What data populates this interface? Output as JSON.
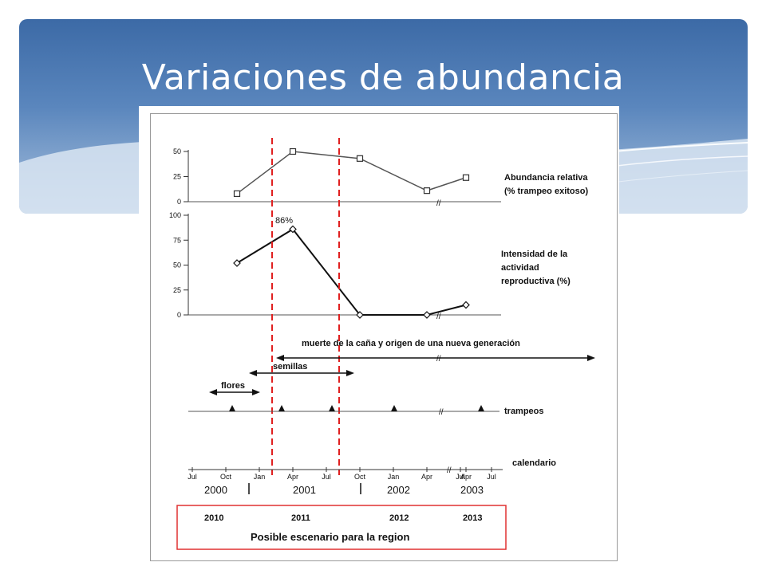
{
  "slide": {
    "title": "Variaciones de abundancia"
  },
  "colors": {
    "banner_top": "#3c6aa6",
    "banner_bottom": "#a9c1dd",
    "dashed_lines": "#e02020",
    "scenario_box": "#e03030"
  },
  "chart_data": [
    {
      "type": "line",
      "label_lines": [
        "Abundancia relativa",
        "(% trampeo exitoso)"
      ],
      "marker": "square",
      "yticks": [
        0,
        25,
        50
      ],
      "ylim": [
        0,
        50
      ],
      "x": [
        "2000-11",
        "2001-04",
        "2001-10",
        "2002-04",
        "2003-04"
      ],
      "values": [
        8,
        50,
        43,
        11,
        24
      ]
    },
    {
      "type": "line",
      "label_lines": [
        "Intensidad de la",
        "actividad",
        "reproductiva (%)"
      ],
      "marker": "diamond",
      "yticks": [
        0,
        25,
        50,
        75,
        100
      ],
      "ylim": [
        0,
        100
      ],
      "x": [
        "2000-11",
        "2001-04",
        "2001-10",
        "2002-04",
        "2003-04"
      ],
      "values": [
        52,
        86,
        0,
        0,
        10
      ],
      "annotation": "86%"
    }
  ],
  "timeline": {
    "muerte_label": "muerte de la caña y origen de una nueva generación",
    "semillas_label": "semillas",
    "flores_label": "flores",
    "trampeos_label": "trampeos",
    "calendario_label": "calendario",
    "months": [
      "Jul",
      "Oct",
      "Jan",
      "Apr",
      "Jul",
      "Oct",
      "Jan",
      "Apr",
      "Jul",
      "Apr",
      "Jul"
    ],
    "years": [
      "2000",
      "2001",
      "2002",
      "2003"
    ],
    "scenario_years": [
      "2010",
      "2011",
      "2012",
      "2013"
    ],
    "scenario_caption": "Posible escenario para la region"
  }
}
